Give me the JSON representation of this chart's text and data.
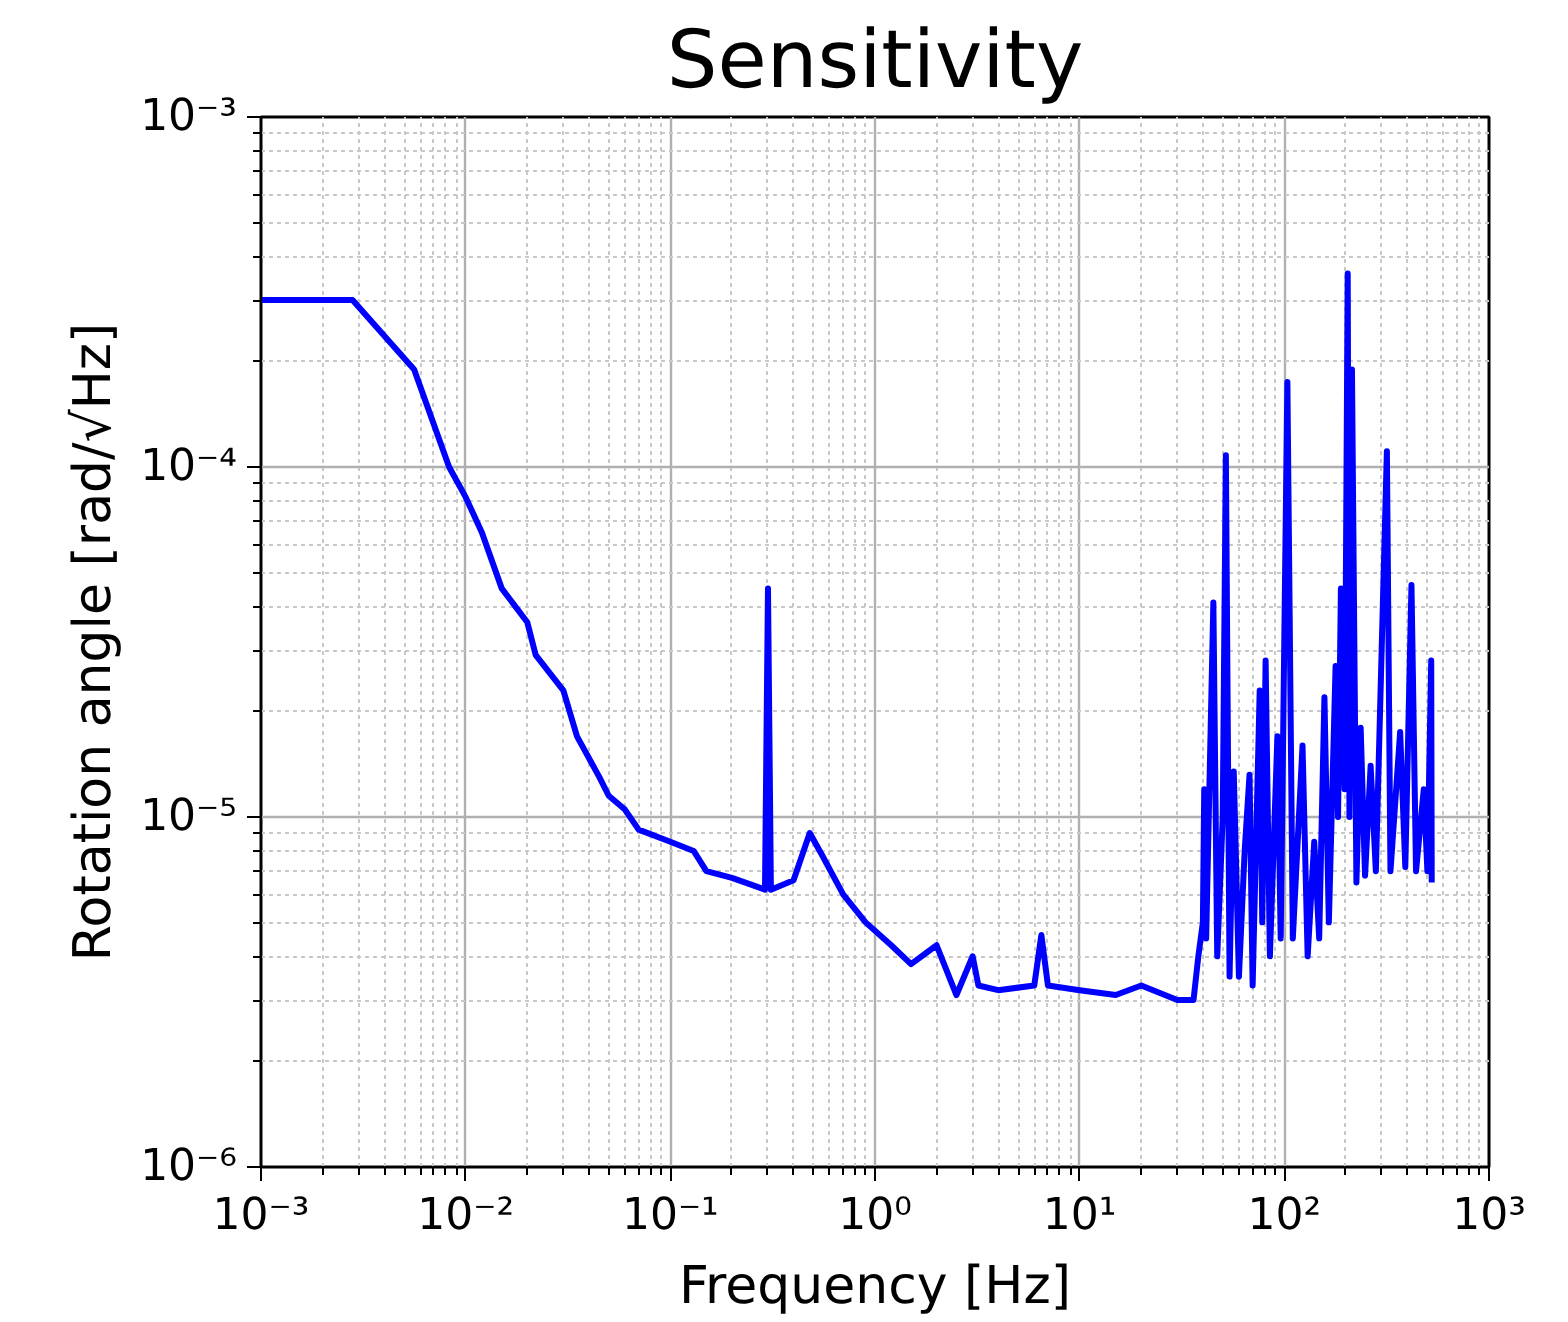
{
  "chart_data": {
    "type": "line",
    "title": "Sensitivity",
    "xlabel": "Frequency [Hz]",
    "ylabel": "Rotation angle [rad/√Hz]",
    "log": "xy",
    "grid": true,
    "marker": "none",
    "line_style": "solid",
    "xlim": [
      0.001,
      1000
    ],
    "ylim": [
      1e-06,
      0.001
    ],
    "xticks": [
      {
        "value": 0.001,
        "label": "10⁻³"
      },
      {
        "value": 0.01,
        "label": "10⁻²"
      },
      {
        "value": 0.1,
        "label": "10⁻¹"
      },
      {
        "value": 1,
        "label": "10⁰"
      },
      {
        "value": 10,
        "label": "10¹"
      },
      {
        "value": 100,
        "label": "10²"
      },
      {
        "value": 1000,
        "label": "10³"
      }
    ],
    "yticks": [
      {
        "value": 1e-06,
        "label": "10⁻⁶"
      },
      {
        "value": 1e-05,
        "label": "10⁻⁵"
      },
      {
        "value": 0.0001,
        "label": "10⁻⁴"
      },
      {
        "value": 0.001,
        "label": "10⁻³"
      }
    ],
    "series": [
      {
        "color": "#0000ff",
        "x": [
          0.001,
          0.0028,
          0.0056,
          0.0083,
          0.01,
          0.012,
          0.015,
          0.02,
          0.022,
          0.03,
          0.035,
          0.045,
          0.05,
          0.06,
          0.07,
          0.1,
          0.13,
          0.15,
          0.2,
          0.25,
          0.29,
          0.3,
          0.31,
          0.4,
          0.48,
          0.55,
          0.7,
          0.9,
          1.2,
          1.5,
          2.0,
          2.3,
          2.5,
          3.0,
          3.2,
          4,
          6.0,
          6.5,
          7,
          10,
          15,
          20,
          30,
          36,
          38,
          40,
          40.6,
          41.5,
          45,
          47,
          50,
          51.8,
          54,
          56.6,
          60,
          64,
          67.6,
          70,
          75.8,
          78,
          81,
          85,
          92.5,
          96,
          103.5,
          110,
          122.7,
          130,
          140,
          148,
          157,
          165,
          178,
          183,
          189,
          197,
          204,
          208,
          214,
          225,
          236,
          248,
          264,
          280,
          317,
          330,
          368,
          390,
          418,
          440,
          480,
          500,
          522,
          525
        ],
        "values": [
          0.0003,
          0.0003,
          0.00019,
          0.0001,
          8.2e-05,
          6.5e-05,
          4.5e-05,
          3.6e-05,
          2.9e-05,
          2.3e-05,
          1.7e-05,
          1.3e-05,
          1.15e-05,
          1.05e-05,
          9.2e-06,
          8.5e-06,
          8e-06,
          7e-06,
          6.7e-06,
          6.4e-06,
          6.2e-06,
          4.5e-05,
          6.2e-06,
          6.6e-06,
          9e-06,
          7.8e-06,
          6e-06,
          5e-06,
          4.3e-06,
          3.8e-06,
          4.3e-06,
          3.5e-06,
          3.1e-06,
          4e-06,
          3.3e-06,
          3.2e-06,
          3.3e-06,
          4.6e-06,
          3.3e-06,
          3.2e-06,
          3.1e-06,
          3.3e-06,
          3e-06,
          3e-06,
          4e-06,
          5e-06,
          1.2e-05,
          4.5e-06,
          4.1e-05,
          4e-06,
          1e-05,
          0.000108,
          3.5e-06,
          1.35e-05,
          3.5e-06,
          8e-06,
          1.32e-05,
          3.3e-06,
          2.3e-05,
          5e-06,
          2.8e-05,
          4e-06,
          1.7e-05,
          4.5e-06,
          0.000175,
          4.5e-06,
          1.6e-05,
          4e-06,
          8.5e-06,
          4.5e-06,
          2.2e-05,
          5e-06,
          2.7e-05,
          1e-05,
          4.5e-05,
          1.2e-05,
          0.000357,
          1e-05,
          0.00019,
          6.5e-06,
          1.8e-05,
          6.8e-06,
          1.4e-05,
          7e-06,
          0.000111,
          7e-06,
          1.75e-05,
          7.2e-06,
          4.6e-05,
          7e-06,
          1.2e-05,
          7e-06,
          2.8e-05,
          6.5e-06
        ]
      }
    ]
  }
}
